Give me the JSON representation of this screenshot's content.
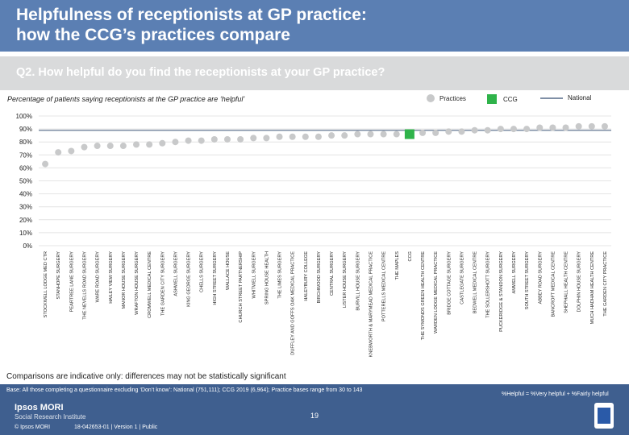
{
  "header": {
    "title_line1": "Helpfulness of receptionists at GP practice:",
    "title_line2": "how the CCG’s practices compare",
    "question": "Q2. How helpful do you find the receptionists at your GP practice?"
  },
  "subtitle": "Percentage of patients saying receptionists at the GP practice are ‘helpful’",
  "legend": {
    "practices": "Practices",
    "ccg": "CCG",
    "national": "National"
  },
  "colors": {
    "header": "#5b7fb3",
    "practice": "#c8c9ca",
    "ccg": "#2fb34a",
    "national": "#7f8fa6",
    "footer": "#3f5f8f"
  },
  "chart_data": {
    "type": "scatter",
    "title": "Percentage of patients saying receptionists at the GP practice are ‘helpful’",
    "ylim": [
      0,
      100
    ],
    "yticks": [
      "0%",
      "10%",
      "20%",
      "30%",
      "40%",
      "50%",
      "60%",
      "70%",
      "80%",
      "90%",
      "100%"
    ],
    "ytick_values": [
      0,
      10,
      20,
      30,
      40,
      50,
      60,
      70,
      80,
      90,
      100
    ],
    "national": 89,
    "categories": [
      "STOCKWELL LODGE MED CTR",
      "STANHOPE SURGERY",
      "PEARTREE LANE SURGERY",
      "THE NEVELLS ROAD SURGERY",
      "WARE ROAD SURGERY",
      "HAILEY VIEW SURGERY",
      "MANOR HOUSE SURGERY",
      "WRAFTON HOUSE SURGERY",
      "CROMWELL MEDICAL CENTRE",
      "THE GARDEN CITY SURGERY",
      "ASHWELL SURGERY",
      "KING GEORGE SURGERY",
      "CHELLS SURGERY",
      "HIGH STREET SURGERY",
      "WALLACE HOUSE",
      "CHURCH STREET PARTNERSHIP",
      "WHITWELL SURGERY",
      "SPRING HOUSE HEALTH",
      "THE LIMES SURGERY",
      "DUFFLEY AND GOFFS OAK MEDICAL PRACTICE",
      "HALEYBURY COLLEGE",
      "BIRCHWOOD SURGERY",
      "CENTRAL SURGERY",
      "LISTER HOUSE SURGERY",
      "BURVILL HOUSE SURGERY",
      "KNEBWORTH & MARYMEAD MEDICAL PRACTICE",
      "POTTERELLS MEDICAL CENTRE",
      "THE MAPLES",
      "CCG",
      "THE SYMONDS GREEN HEALTH CENTRE",
      "WARDEN LODGE MEDICAL PRACTICE",
      "BRIDGE COTTAGE SURGERY",
      "CASTLEGATE SURGERY",
      "BEDWELL MEDICAL CENTRE",
      "THE SOLLERSHOTT SURGERY",
      "PUCKERIDGE & STANDON SURGERY",
      "AMWELL SURGERY",
      "SOUTH STREET SURGERY",
      "ABBEY ROAD SURGERY",
      "BANCROFT MEDICAL CENTRE",
      "SHEPHALL HEALTH CENTRE",
      "DOLPHIN HOUSE SURGERY",
      "MUCH HADHAM HEALTH CENTRE",
      "THE GARDEN CITY PRACTICE"
    ],
    "values": [
      63,
      72,
      73,
      76,
      77,
      77,
      77,
      78,
      78,
      79,
      80,
      81,
      81,
      82,
      82,
      82,
      83,
      83,
      84,
      84,
      84,
      84,
      85,
      85,
      86,
      86,
      86,
      86,
      86,
      87,
      87,
      88,
      88,
      89,
      89,
      90,
      90,
      90,
      91,
      91,
      91,
      92,
      92,
      92
    ],
    "highlight_category": "CCG"
  },
  "footer": {
    "caveat": "Comparisons are indicative only: differences may not be statistically significant",
    "base": "Base: All those completing a questionnaire excluding ‘Don’t know’: National (751,111); CCG 2019 (6,964); Practice bases range from 30 to 143",
    "definition": "%Helpful = %Very helpful + %Fairly helpful",
    "brand_name": "Ipsos MORI",
    "brand_sub": "Social Research Institute",
    "copyright": "© Ipsos MORI",
    "job_ref": "18-042653-01 | Version 1 | Public",
    "page_number": "19"
  }
}
